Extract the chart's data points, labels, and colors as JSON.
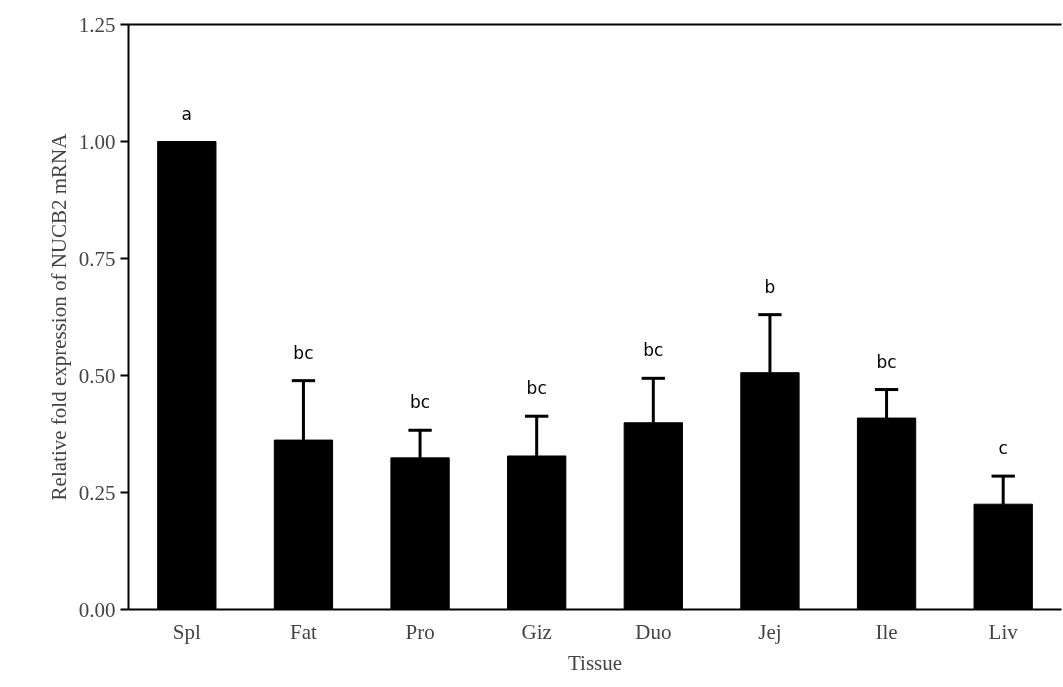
{
  "chart_data": {
    "type": "bar",
    "xlabel": "Tissue",
    "ylabel": "Relative fold expression of NUCB2 mRNA",
    "categories": [
      "Spl",
      "Fat",
      "Pro",
      "Giz",
      "Duo",
      "Jej",
      "Ile",
      "Liv"
    ],
    "values": [
      1.0,
      0.362,
      0.324,
      0.328,
      0.399,
      0.506,
      0.409,
      0.225
    ],
    "errors": [
      null,
      [
        0.362,
        0.489
      ],
      [
        0.324,
        0.383
      ],
      [
        0.328,
        0.413
      ],
      [
        0.399,
        0.494
      ],
      [
        0.506,
        0.63
      ],
      [
        0.409,
        0.47
      ],
      [
        0.225,
        0.285
      ]
    ],
    "color": "#000000",
    "ylim": [
      0,
      1.25
    ],
    "yticks": [
      {
        "value": 0,
        "label": "0.00"
      },
      {
        "value": 0.25,
        "label": "0.25"
      },
      {
        "value": 0.5,
        "label": "0.50"
      },
      {
        "value": 0.75,
        "label": "0.75"
      },
      {
        "value": 1.0,
        "label": "1.00"
      },
      {
        "value": 1.25,
        "label": "1.25"
      }
    ],
    "annotations": [
      "a",
      "bc",
      "bc",
      "bc",
      "bc",
      "b",
      "bc",
      "c"
    ],
    "grid": false
  }
}
